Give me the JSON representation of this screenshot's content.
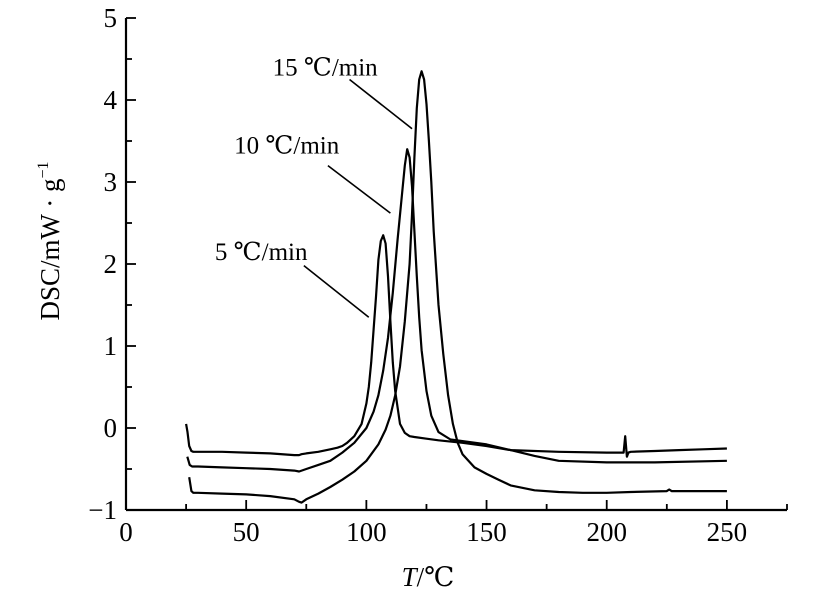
{
  "chart_data": {
    "type": "line",
    "xlabel_italic": "T",
    "xlabel_unit": "/℃",
    "ylabel": "DSC/mW · g",
    "ylabel_sup": "−1",
    "xlim": [
      0,
      275
    ],
    "ylim": [
      -1,
      5
    ],
    "xticks": [
      0,
      50,
      100,
      150,
      200,
      250
    ],
    "yticks": [
      -1,
      0,
      1,
      2,
      3,
      4,
      5
    ],
    "xtick_labels": [
      "0",
      "50",
      "100",
      "150",
      "200",
      "250"
    ],
    "ytick_labels": [
      "−1",
      "0",
      "1",
      "2",
      "3",
      "4",
      "5"
    ],
    "grid": false,
    "line_color": "#000000",
    "series": [
      {
        "name": "5 ℃/min",
        "x": [
          25,
          25.6,
          26.3,
          27.2,
          28,
          30,
          40,
          50,
          60,
          70,
          72,
          73,
          75,
          80,
          85,
          88,
          90,
          92,
          95,
          98,
          100,
          101,
          102,
          103,
          104,
          105,
          106,
          107,
          108,
          109,
          110,
          111,
          112,
          114,
          116,
          118,
          120,
          125,
          130,
          140,
          150,
          160,
          180,
          200,
          207,
          207.7,
          208.4,
          209,
          210,
          220,
          230,
          240,
          250
        ],
        "y": [
          0.05,
          -0.05,
          -0.22,
          -0.28,
          -0.29,
          -0.29,
          -0.29,
          -0.3,
          -0.31,
          -0.33,
          -0.33,
          -0.32,
          -0.31,
          -0.29,
          -0.26,
          -0.24,
          -0.22,
          -0.18,
          -0.1,
          0.05,
          0.3,
          0.5,
          0.8,
          1.2,
          1.6,
          2.05,
          2.28,
          2.35,
          2.25,
          1.85,
          1.3,
          0.8,
          0.45,
          0.05,
          -0.06,
          -0.1,
          -0.11,
          -0.13,
          -0.15,
          -0.18,
          -0.22,
          -0.27,
          -0.29,
          -0.3,
          -0.3,
          -0.1,
          -0.35,
          -0.3,
          -0.29,
          -0.28,
          -0.27,
          -0.26,
          -0.25
        ]
      },
      {
        "name": "10 ℃/min",
        "x": [
          25.5,
          26.5,
          27.5,
          30,
          40,
          50,
          60,
          70,
          72,
          75,
          80,
          85,
          90,
          95,
          100,
          103,
          105,
          107,
          109,
          111,
          113,
          115,
          116,
          117,
          118,
          119,
          120,
          121,
          122,
          123,
          125,
          127,
          130,
          135,
          140,
          150,
          160,
          170,
          180,
          200,
          220,
          250
        ],
        "y": [
          -0.35,
          -0.45,
          -0.47,
          -0.47,
          -0.48,
          -0.49,
          -0.5,
          -0.52,
          -0.53,
          -0.5,
          -0.45,
          -0.4,
          -0.3,
          -0.18,
          0.0,
          0.2,
          0.4,
          0.7,
          1.1,
          1.65,
          2.3,
          2.9,
          3.2,
          3.4,
          3.3,
          2.95,
          2.4,
          1.85,
          1.35,
          0.95,
          0.45,
          0.15,
          -0.05,
          -0.14,
          -0.16,
          -0.2,
          -0.27,
          -0.34,
          -0.4,
          -0.42,
          -0.42,
          -0.4
        ]
      },
      {
        "name": "15 ℃/min",
        "x": [
          26.3,
          27.2,
          28,
          30,
          40,
          50,
          60,
          70,
          72,
          73,
          75,
          80,
          85,
          90,
          95,
          100,
          105,
          108,
          110,
          112,
          114,
          116,
          118,
          119,
          120,
          121,
          122,
          123,
          124,
          125,
          126,
          127,
          128,
          130,
          132,
          134,
          136,
          138,
          140,
          145,
          150,
          155,
          160,
          170,
          180,
          190,
          200,
          210,
          225,
          226,
          227,
          230,
          250
        ],
        "y": [
          -0.6,
          -0.77,
          -0.79,
          -0.79,
          -0.8,
          -0.81,
          -0.83,
          -0.87,
          -0.9,
          -0.91,
          -0.87,
          -0.8,
          -0.72,
          -0.63,
          -0.53,
          -0.4,
          -0.2,
          -0.02,
          0.15,
          0.4,
          0.75,
          1.3,
          2.0,
          2.6,
          3.3,
          3.9,
          4.25,
          4.35,
          4.25,
          3.95,
          3.5,
          3.0,
          2.4,
          1.5,
          0.9,
          0.4,
          0.05,
          -0.18,
          -0.32,
          -0.48,
          -0.56,
          -0.63,
          -0.7,
          -0.76,
          -0.78,
          -0.79,
          -0.79,
          -0.78,
          -0.77,
          -0.75,
          -0.77,
          -0.77,
          -0.77
        ]
      }
    ],
    "annotations": [
      {
        "text": "15 ℃/min",
        "label_x": 61,
        "label_y": 4.3,
        "line_from": [
          93,
          4.25
        ],
        "line_to": [
          119,
          3.65
        ]
      },
      {
        "text": "10 ℃/min",
        "label_x": 45,
        "label_y": 3.35,
        "line_from": [
          84,
          3.2
        ],
        "line_to": [
          110,
          2.62
        ]
      },
      {
        "text": "5 ℃/min",
        "label_x": 37,
        "label_y": 2.05,
        "line_from": [
          74,
          1.98
        ],
        "line_to": [
          101,
          1.35
        ]
      }
    ]
  }
}
